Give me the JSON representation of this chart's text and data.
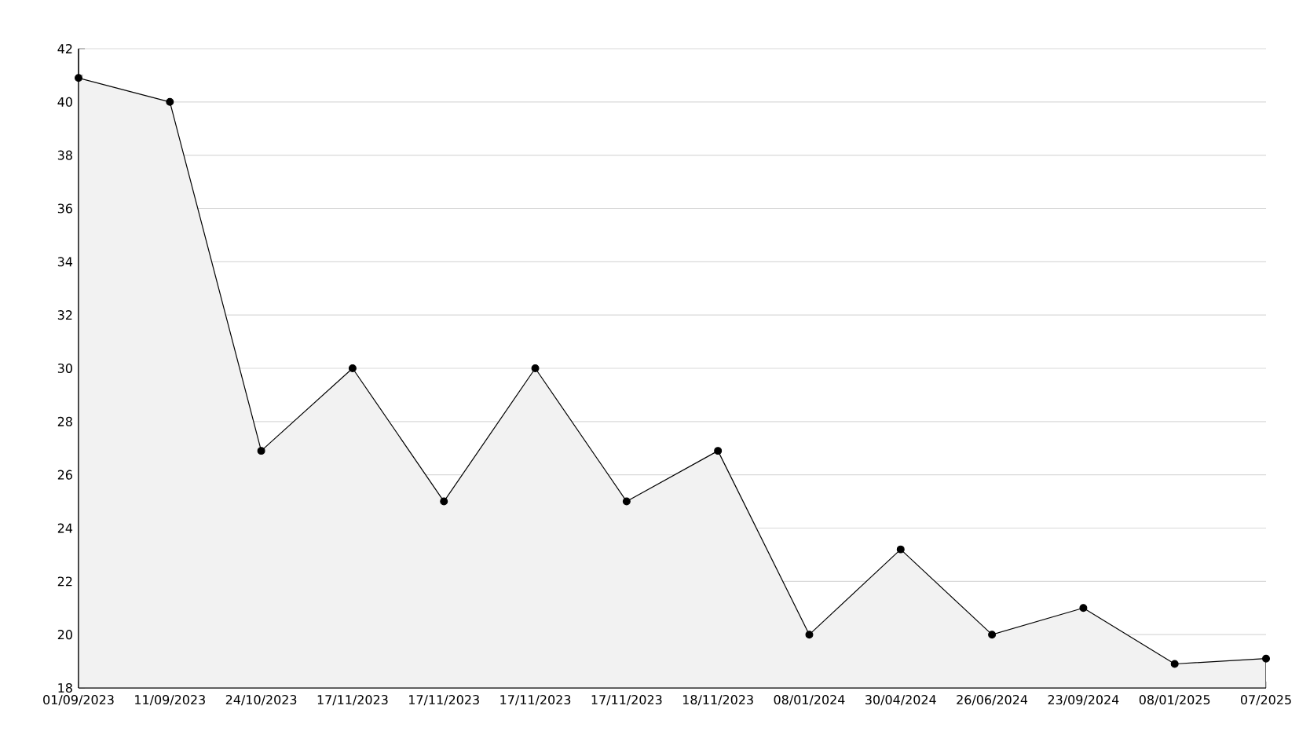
{
  "chart_data": {
    "type": "area",
    "categories": [
      "01/09/2023",
      "11/09/2023",
      "24/10/2023",
      "17/11/2023",
      "17/11/2023",
      "17/11/2023",
      "17/11/2023",
      "18/11/2023",
      "08/01/2024",
      "30/04/2024",
      "26/06/2024",
      "23/09/2024",
      "08/01/2025",
      "07/2025"
    ],
    "series": [
      {
        "color": "#000000",
        "values": [
          40.9,
          40,
          26.9,
          30,
          25,
          30,
          25,
          26.9,
          20,
          23.2,
          20,
          21,
          18.9,
          19.1
        ]
      }
    ],
    "ylim": [
      18,
      42
    ],
    "yticks": [
      18,
      20,
      22,
      24,
      26,
      28,
      30,
      32,
      34,
      36,
      38,
      40,
      42
    ],
    "grid": "y",
    "marker": "circle",
    "line_style": "solid"
  }
}
